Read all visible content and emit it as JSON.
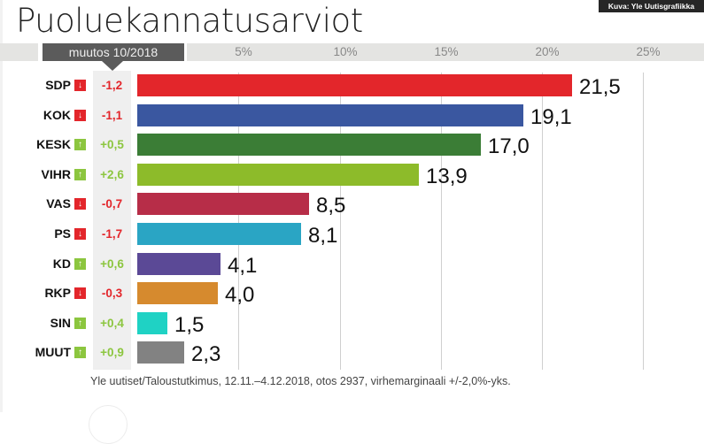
{
  "title": "Puoluekannatusarviot",
  "credit": "Kuva: Yle Uutisgrafiikka",
  "change_header": "muutos 10/2018",
  "source": "Yle uutiset/Taloustutkimus, 12.11.–4.12.2018, otos 2937, virhemarginaali +/-2,0%-yks.",
  "colors": {
    "up": "#8cc63f",
    "down": "#e3262b",
    "up_text": "#8cc63f",
    "down_text": "#e3262b"
  },
  "chart_data": {
    "type": "bar",
    "orientation": "horizontal",
    "title": "Puoluekannatusarviot",
    "xlabel": "",
    "ylabel": "",
    "xlim": [
      0,
      25
    ],
    "ticks": [
      5,
      10,
      15,
      20,
      25
    ],
    "tick_labels": [
      "5%",
      "10%",
      "15%",
      "20%",
      "25%"
    ],
    "grid": true,
    "categories": [
      "SDP",
      "KOK",
      "KESK",
      "VIHR",
      "VAS",
      "PS",
      "KD",
      "RKP",
      "SIN",
      "MUUT"
    ],
    "values": [
      21.5,
      19.1,
      17.0,
      13.9,
      8.5,
      8.1,
      4.1,
      4.0,
      1.5,
      2.3
    ],
    "value_labels": [
      "21,5",
      "19,1",
      "17,0",
      "13,9",
      "8,5",
      "8,1",
      "4,1",
      "4,0",
      "1,5",
      "2,3"
    ],
    "changes": [
      -1.2,
      -1.1,
      0.5,
      2.6,
      -0.7,
      -1.7,
      0.6,
      -0.3,
      0.4,
      0.9
    ],
    "change_labels": [
      "-1,2",
      "-1,1",
      "+0,5",
      "+2,6",
      "-0,7",
      "-1,7",
      "+0,6",
      "-0,3",
      "+0,4",
      "+0,9"
    ],
    "bar_colors": [
      "#e3262b",
      "#3a57a0",
      "#3b7d36",
      "#8dbb2a",
      "#b72d48",
      "#2aa5c4",
      "#5b4996",
      "#d68a2e",
      "#1fd2c4",
      "#828282"
    ]
  }
}
